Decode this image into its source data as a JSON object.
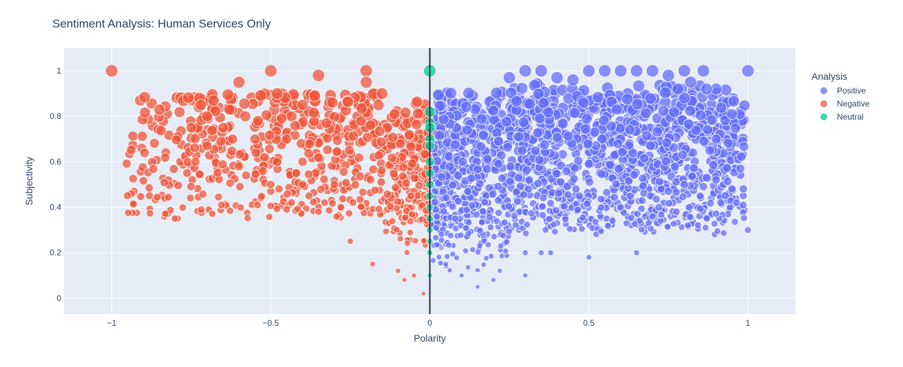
{
  "chart_data": {
    "type": "scatter",
    "title": "Sentiment Analysis: Human Services Only",
    "xlabel": "Polarity",
    "ylabel": "Subjectivity",
    "xlim": [
      -1.15,
      1.15
    ],
    "ylim": [
      -0.07,
      1.1
    ],
    "x_ticks": [
      -1,
      -0.5,
      0,
      0.5,
      1
    ],
    "x_tick_labels": [
      "−1",
      "−0.5",
      "0",
      "0.5",
      "1"
    ],
    "y_ticks": [
      0,
      0.2,
      0.4,
      0.6,
      0.8,
      1
    ],
    "y_tick_labels": [
      "0",
      "0.2",
      "0.4",
      "0.6",
      "0.8",
      "1"
    ],
    "grid": true,
    "legend": {
      "title": "Analysis",
      "placement": "right"
    },
    "vertical_line_x": 0,
    "series": [
      {
        "name": "Positive",
        "color": "#636efa",
        "points": [
          [
            1.0,
            1.0
          ],
          [
            0.95,
            0.81
          ],
          [
            1.0,
            0.3
          ],
          [
            0.9,
            0.92
          ],
          [
            0.87,
            0.92
          ],
          [
            0.8,
            1.0
          ],
          [
            0.86,
            1.0
          ],
          [
            0.85,
            0.45
          ],
          [
            0.87,
            0.53
          ],
          [
            0.9,
            0.52
          ],
          [
            0.88,
            0.65
          ],
          [
            0.9,
            0.7
          ],
          [
            0.8,
            0.5
          ],
          [
            0.75,
            0.47
          ],
          [
            0.72,
            0.4
          ],
          [
            0.7,
            0.36
          ],
          [
            0.65,
            0.2
          ],
          [
            0.5,
            0.18
          ],
          [
            0.3,
            0.2
          ],
          [
            0.35,
            0.2
          ],
          [
            0.38,
            0.2
          ],
          [
            0.3,
            0.1
          ],
          [
            0.22,
            0.12
          ],
          [
            0.15,
            0.05
          ],
          [
            0.2,
            0.08
          ],
          [
            0.1,
            0.1
          ],
          [
            0.05,
            0.15
          ],
          [
            0.6,
            0.4
          ],
          [
            0.6,
            1.0
          ],
          [
            0.65,
            1.0
          ],
          [
            0.7,
            1.0
          ],
          [
            0.55,
            1.0
          ],
          [
            0.5,
            1.0
          ],
          [
            0.35,
            1.0
          ],
          [
            0.3,
            1.0
          ],
          [
            0.25,
            0.97
          ],
          [
            0.4,
            0.97
          ],
          [
            0.45,
            0.96
          ],
          [
            0.75,
            0.98
          ],
          [
            0.8,
            0.88
          ],
          [
            0.82,
            0.95
          ],
          [
            0.78,
            0.92
          ]
        ]
      },
      {
        "name": "Negative",
        "color": "#ef553b",
        "points": [
          [
            -1.0,
            1.0
          ],
          [
            -0.85,
            0.83
          ],
          [
            -0.75,
            0.75
          ],
          [
            -0.7,
            0.67
          ],
          [
            -0.7,
            0.8
          ],
          [
            -0.72,
            0.85
          ],
          [
            -0.68,
            0.87
          ],
          [
            -0.65,
            0.75
          ],
          [
            -0.63,
            0.83
          ],
          [
            -0.6,
            0.95
          ],
          [
            -0.62,
            0.7
          ],
          [
            -0.6,
            0.58
          ],
          [
            -0.55,
            0.7
          ],
          [
            -0.5,
            0.5
          ],
          [
            -0.5,
            1.0
          ],
          [
            -0.48,
            0.9
          ],
          [
            -0.45,
            0.39
          ],
          [
            -0.4,
            0.5
          ],
          [
            -0.4,
            0.6
          ],
          [
            -0.35,
            0.98
          ],
          [
            -0.4,
            0.85
          ],
          [
            -0.38,
            0.45
          ],
          [
            -0.35,
            0.38
          ],
          [
            -0.2,
            1.0
          ],
          [
            -0.2,
            0.95
          ],
          [
            -0.15,
            0.9
          ],
          [
            -0.18,
            0.15
          ],
          [
            -0.1,
            0.12
          ],
          [
            -0.05,
            0.1
          ],
          [
            -0.02,
            0.02
          ],
          [
            -0.08,
            0.08
          ],
          [
            -0.25,
            0.25
          ],
          [
            -0.28,
            0.4
          ],
          [
            -0.3,
            0.5
          ],
          [
            -0.58,
            0.8
          ],
          [
            -0.52,
            0.62
          ],
          [
            -0.54,
            0.78
          ],
          [
            -0.45,
            0.7
          ],
          [
            -0.42,
            0.55
          ],
          [
            -0.48,
            0.6
          ]
        ]
      },
      {
        "name": "Neutral",
        "color": "#00cc96",
        "points": [
          [
            0,
            1.0
          ],
          [
            0,
            0.82
          ],
          [
            0,
            0.77
          ],
          [
            0,
            0.75
          ],
          [
            0,
            0.7
          ],
          [
            0,
            0.67
          ],
          [
            0,
            0.6
          ],
          [
            0,
            0.55
          ],
          [
            0,
            0.5
          ],
          [
            0,
            0.45
          ],
          [
            0,
            0.4
          ],
          [
            0,
            0.35
          ],
          [
            0,
            0.3
          ],
          [
            0,
            0.25
          ],
          [
            0,
            0.2
          ],
          [
            0,
            0.1
          ]
        ]
      }
    ]
  }
}
